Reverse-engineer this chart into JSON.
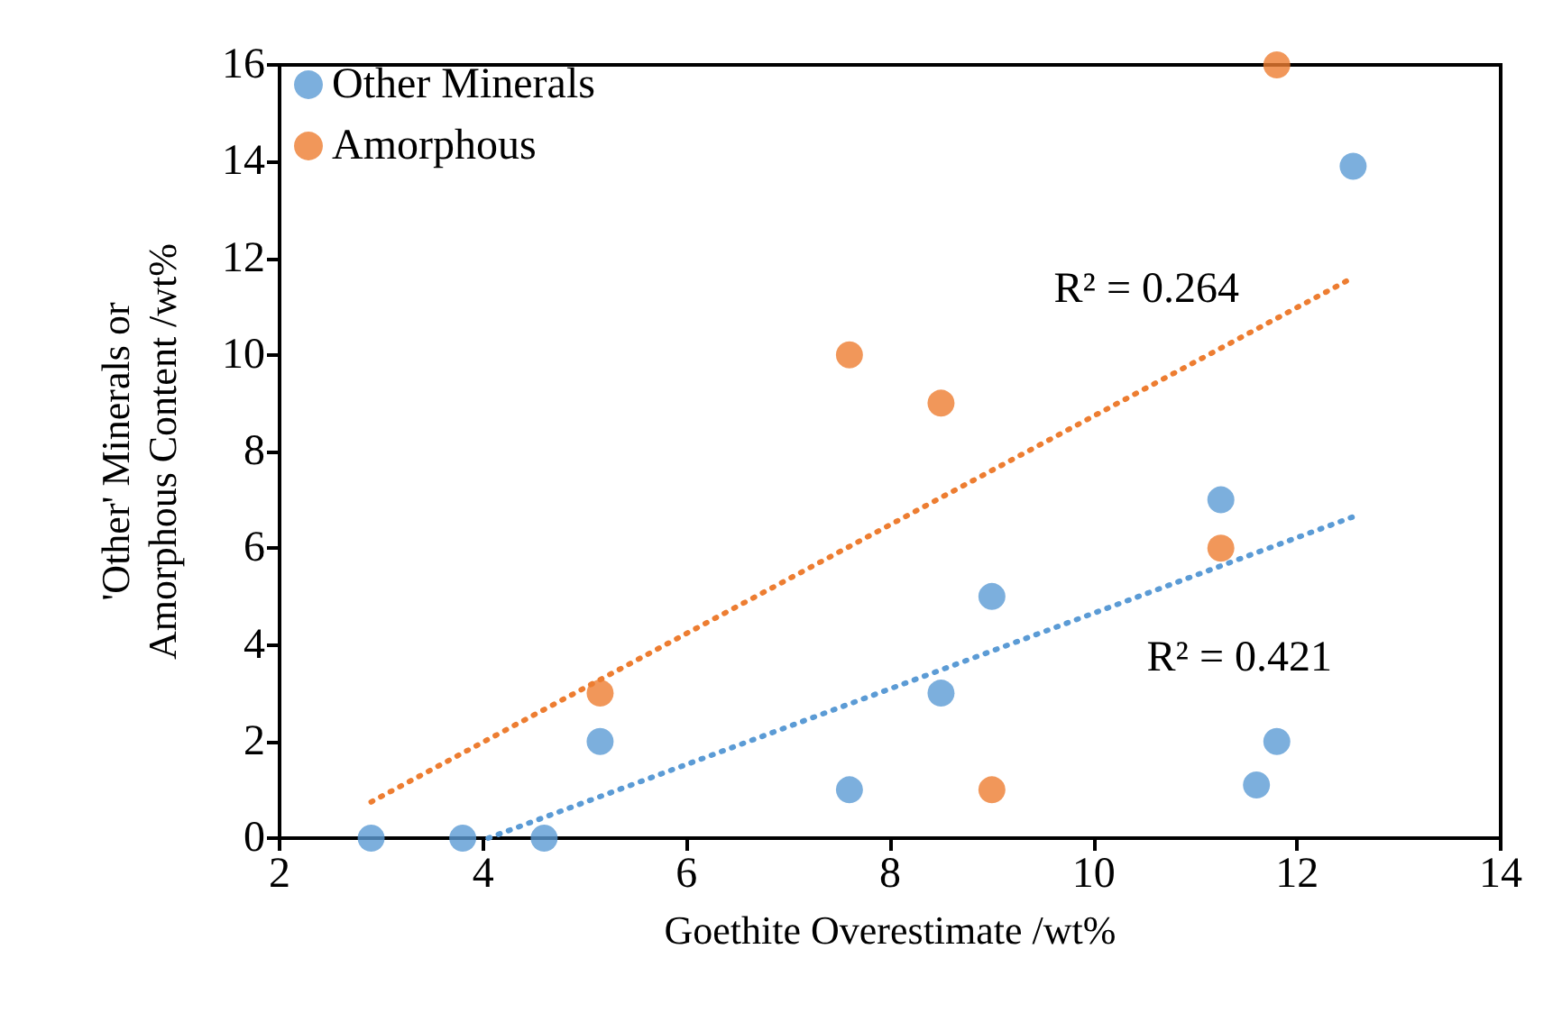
{
  "chart_data": {
    "type": "scatter",
    "xlabel": "Goethite Overestimate /wt%",
    "ylabel": "'Other' Minerals or\nAmorphous Content /wt%",
    "xlim": [
      2,
      14
    ],
    "xticks": [
      2,
      4,
      6,
      8,
      10,
      12,
      14
    ],
    "ylim": [
      0,
      16
    ],
    "yticks": [
      0,
      2,
      4,
      6,
      8,
      10,
      12,
      14,
      16
    ],
    "grid": false,
    "legend": "top left",
    "marker": "circle",
    "series": [
      {
        "name": "Other Minerals",
        "color": "#5b9bd5",
        "x": [
          2.9,
          3.8,
          4.6,
          5.15,
          7.6,
          8.5,
          9.0,
          11.25,
          11.6,
          11.8,
          12.55
        ],
        "values": [
          0,
          0,
          0,
          2,
          1,
          3,
          5,
          7,
          1.1,
          2,
          13.9
        ]
      },
      {
        "name": "Amorphous",
        "color": "#ed7d31",
        "x": [
          5.15,
          7.6,
          8.5,
          9.0,
          11.25,
          11.8
        ],
        "values": [
          3,
          10,
          9,
          1,
          6,
          16
        ]
      },
      {
        "type": "line",
        "color": "#5b9bd5",
        "marker": "none",
        "line_style": "dotted",
        "x": [
          4.05,
          12.55
        ],
        "values": [
          0,
          6.65
        ]
      },
      {
        "type": "line",
        "color": "#ed7d31",
        "marker": "none",
        "line_style": "dotted",
        "x": [
          2.9,
          12.55
        ],
        "values": [
          0.75,
          11.6
        ]
      }
    ],
    "annotations": [
      "R² = 0.264",
      "R² = 0.421"
    ]
  }
}
